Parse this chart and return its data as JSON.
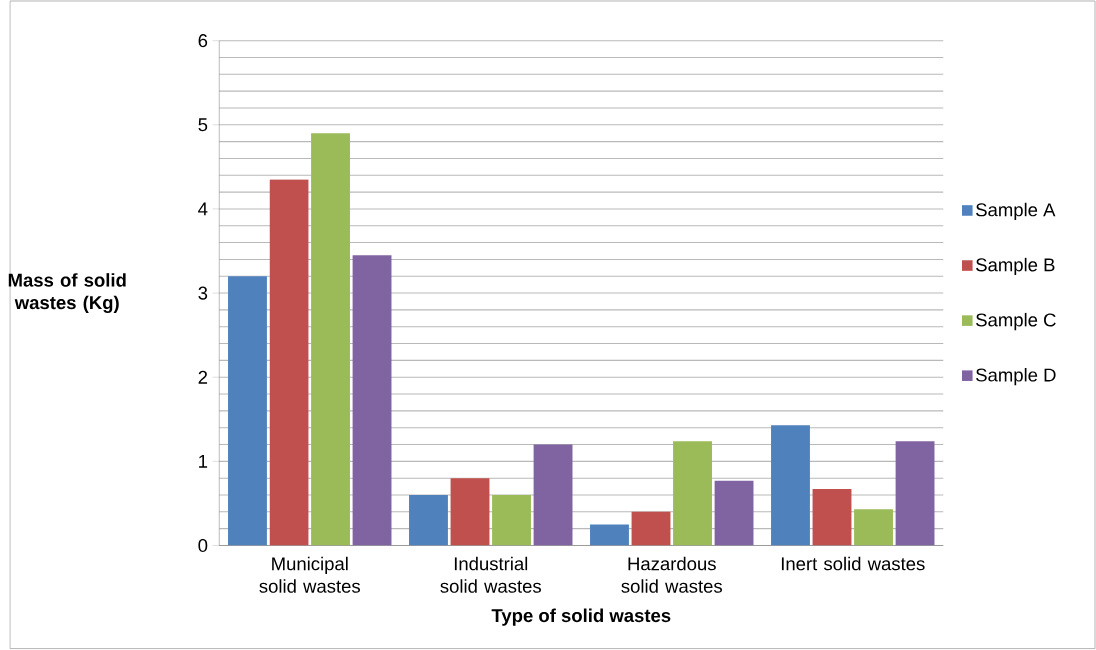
{
  "chart_data": {
    "type": "bar",
    "xlabel": "Type of solid wastes",
    "ylabel": "Mass of solid wastes (Kg)",
    "categories": [
      "Municipal solid wastes",
      "Industrial solid wastes",
      "Hazardous solid wastes",
      "Inert solid wastes"
    ],
    "series": [
      {
        "name": "Sample A",
        "color": "#4f81bd",
        "values": [
          3.2,
          0.6,
          0.25,
          1.43
        ]
      },
      {
        "name": "Sample B",
        "color": "#c0504d",
        "values": [
          4.35,
          0.8,
          0.4,
          0.67
        ]
      },
      {
        "name": "Sample C",
        "color": "#9bbb59",
        "values": [
          4.9,
          0.6,
          1.24,
          0.43
        ]
      },
      {
        "name": "Sample D",
        "color": "#8064a2",
        "values": [
          3.45,
          1.2,
          0.77,
          1.24
        ]
      }
    ],
    "ylim": [
      0,
      6
    ],
    "yticks": [
      0,
      1,
      2,
      3,
      4,
      5,
      6
    ],
    "grid": "y",
    "legend": "right"
  }
}
